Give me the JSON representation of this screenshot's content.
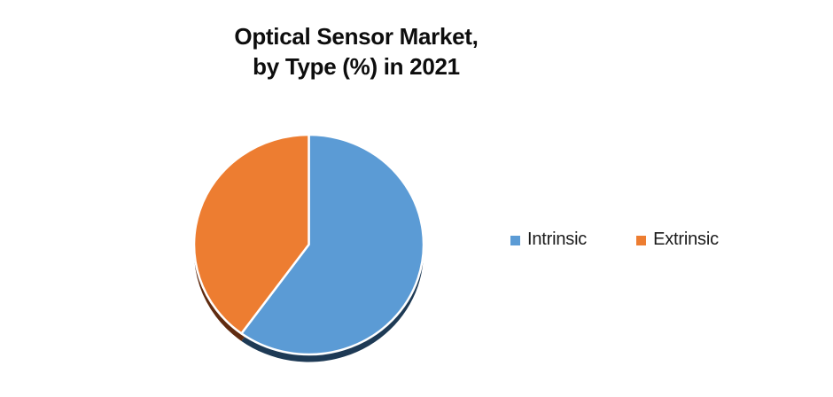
{
  "page": {
    "background_color": "#FFFFFF"
  },
  "chart_data": {
    "type": "pie",
    "title": "Optical Sensor Market, by Type (%) in 2021",
    "title_lines": [
      "Optical Sensor Market,",
      "by Type (%) in 2021"
    ],
    "categories": [
      "Intrinsic",
      "Extrinsic"
    ],
    "values": [
      60,
      40
    ],
    "unit": "%",
    "colors": [
      "#5B9BD5",
      "#ED7D31"
    ],
    "shadow_colors": [
      "#1E3A55",
      "#602B10"
    ],
    "slice_border_color": "#FFFFFF",
    "start_angle_deg": 0,
    "direction": "clockwise",
    "legend_position": "right",
    "legend": {
      "items": [
        {
          "label": "Intrinsic",
          "color": "#5B9BD5"
        },
        {
          "label": "Extrinsic",
          "color": "#ED7D31"
        }
      ]
    }
  }
}
